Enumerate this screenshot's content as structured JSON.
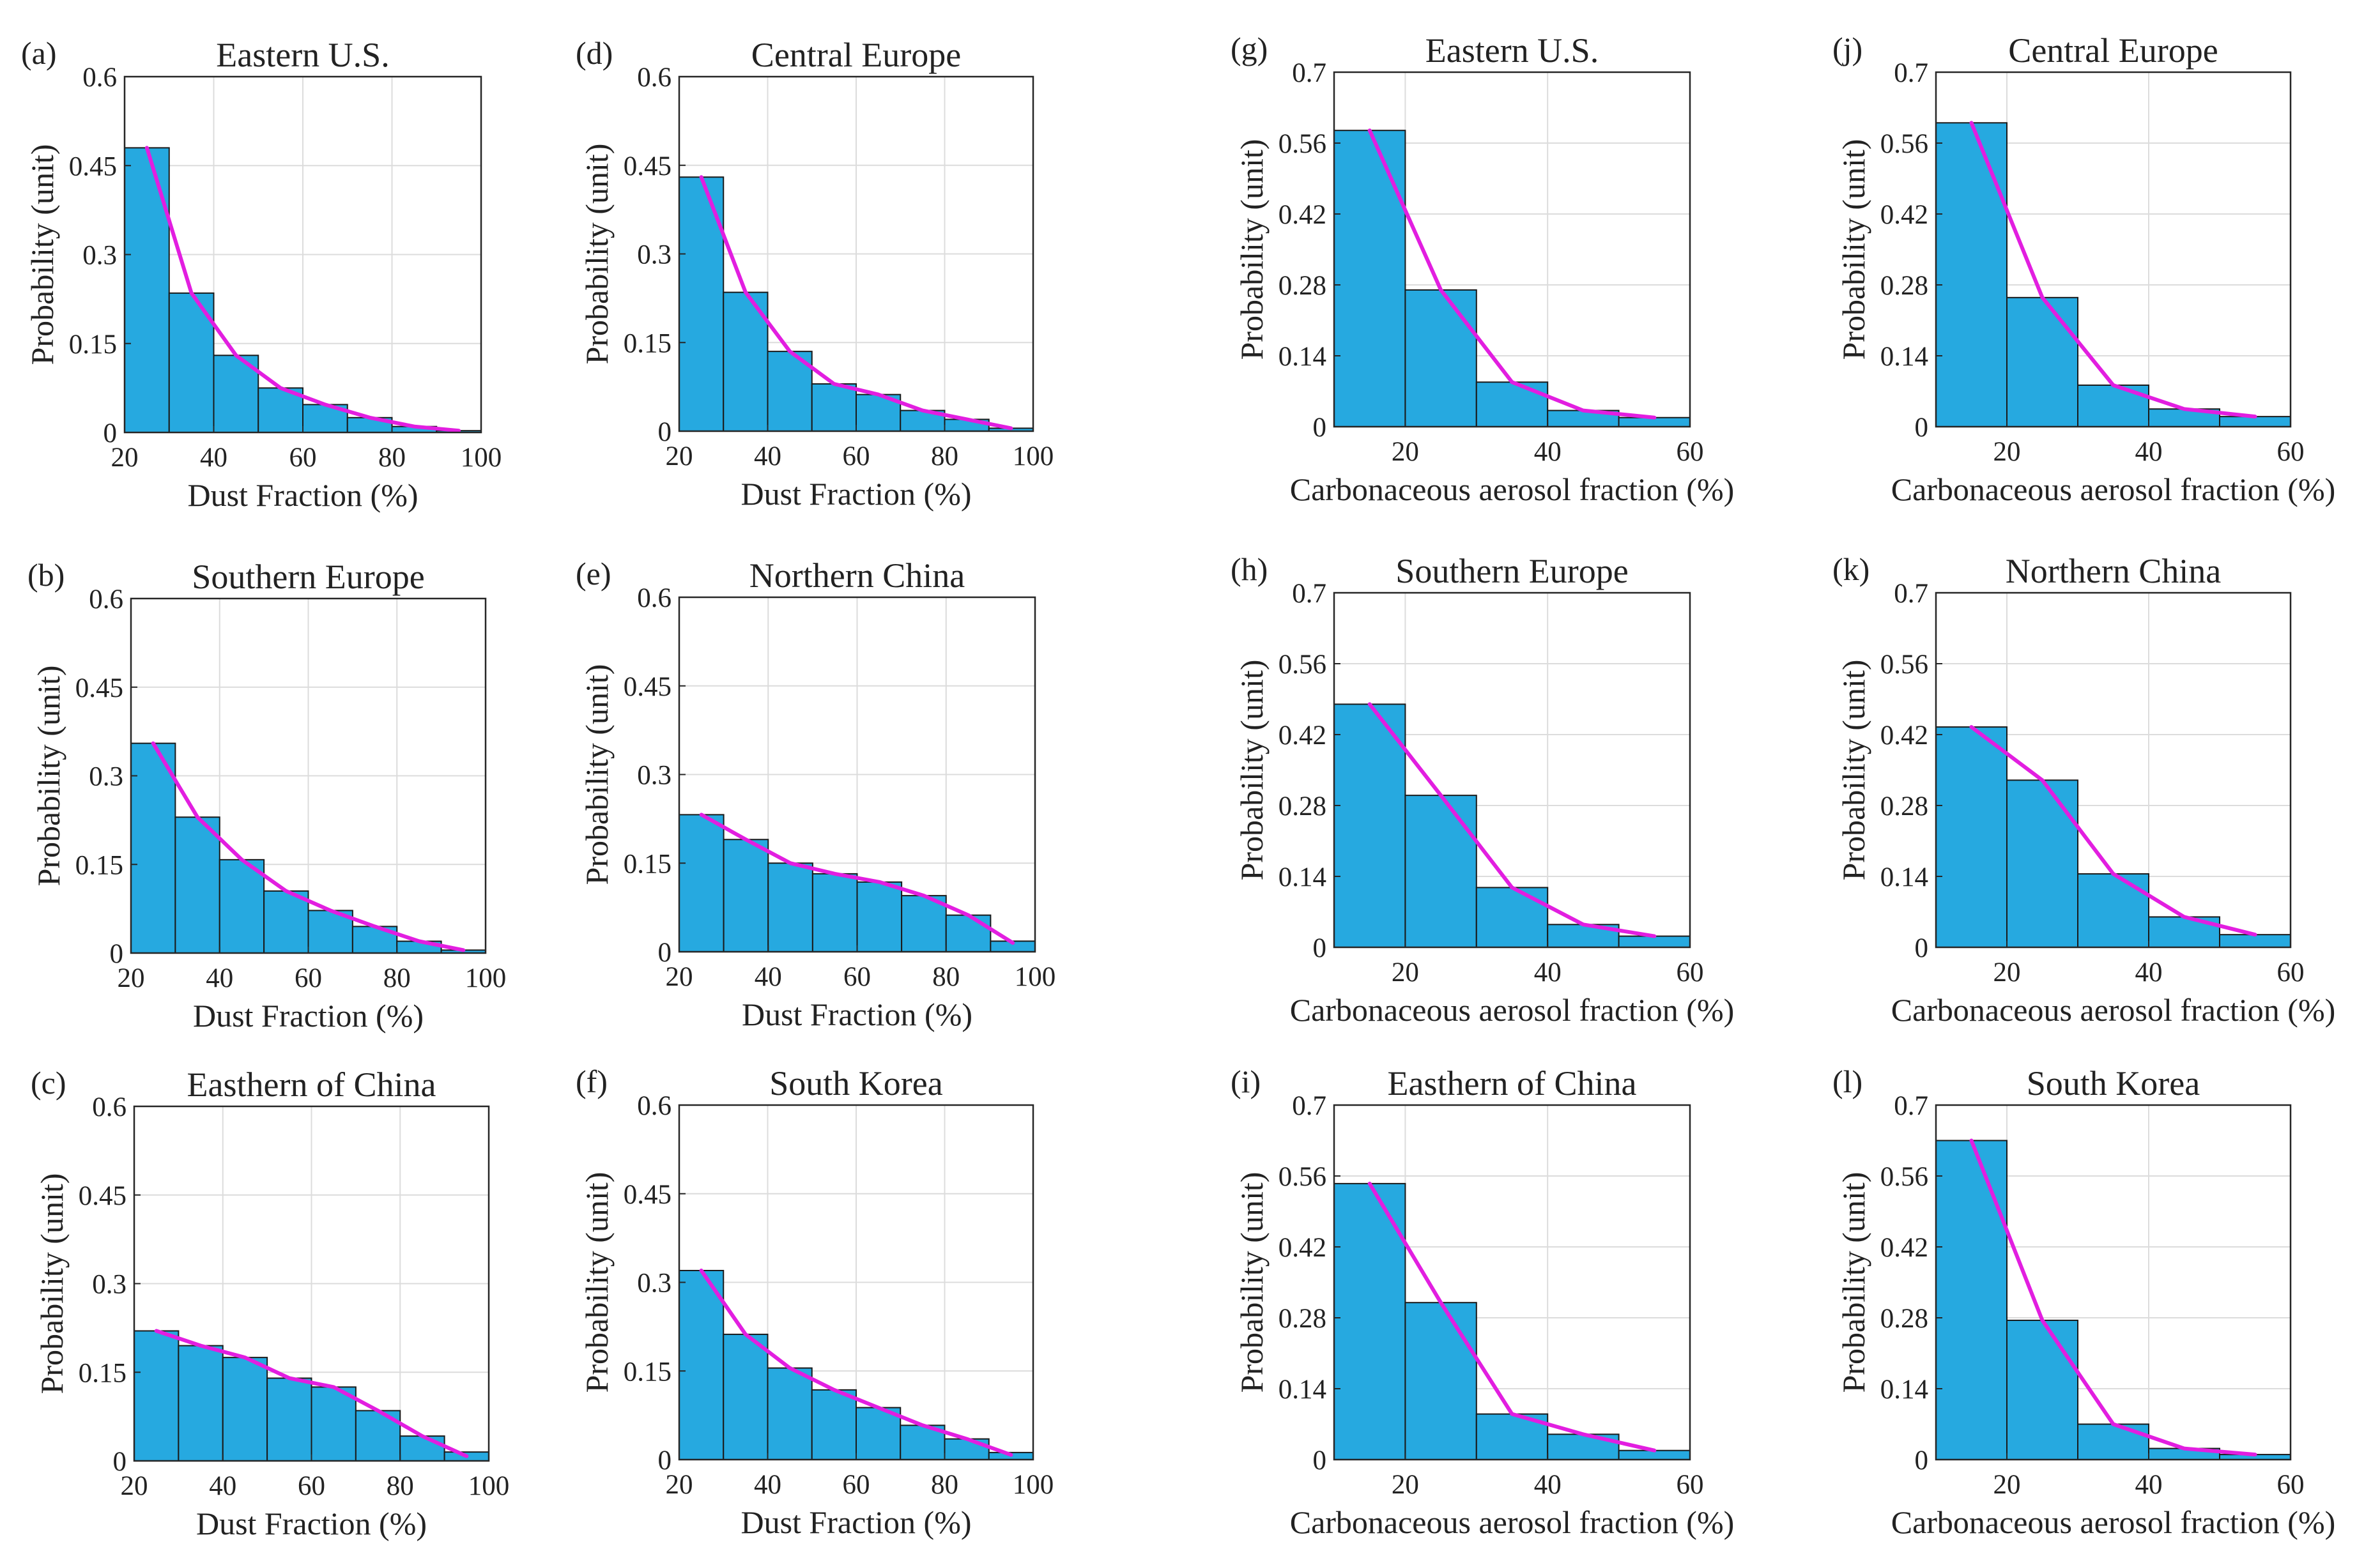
{
  "colors": {
    "bar": "#26a9e0",
    "bar_edge": "#1a1a1a",
    "curve": "#e21ee0",
    "grid": "#dcdcdc",
    "axis": "#262626"
  },
  "chart_data": [
    {
      "panel": "(a)",
      "type": "bar",
      "title": "Eastern U.S.",
      "xlabel": "Dust Fraction (%)",
      "ylabel": "Probability (unit)",
      "xlim": [
        20,
        100
      ],
      "ylim": [
        0,
        0.6
      ],
      "xticks": [
        "20",
        "40",
        "60",
        "80",
        "100"
      ],
      "yticks": [
        "0",
        "0.15",
        "0.3",
        "0.45",
        "0.6"
      ],
      "bins": [
        [
          20,
          30
        ],
        [
          30,
          40
        ],
        [
          40,
          50
        ],
        [
          50,
          60
        ],
        [
          60,
          70
        ],
        [
          70,
          80
        ],
        [
          80,
          90
        ],
        [
          90,
          100
        ]
      ],
      "values": [
        0.48,
        0.235,
        0.13,
        0.075,
        0.047,
        0.025,
        0.01,
        0.003
      ],
      "curve": {
        "x": [
          25,
          35,
          45,
          55,
          65,
          75,
          85,
          95
        ],
        "y": [
          0.48,
          0.235,
          0.13,
          0.075,
          0.047,
          0.025,
          0.01,
          0.003
        ]
      }
    },
    {
      "panel": "(b)",
      "type": "bar",
      "title": "Southern Europe",
      "xlabel": "Dust Fraction (%)",
      "ylabel": "Probability (unit)",
      "xlim": [
        20,
        100
      ],
      "ylim": [
        0,
        0.6
      ],
      "xticks": [
        "20",
        "40",
        "60",
        "80",
        "100"
      ],
      "yticks": [
        "0",
        "0.15",
        "0.3",
        "0.45",
        "0.6"
      ],
      "bins": [
        [
          20,
          30
        ],
        [
          30,
          40
        ],
        [
          40,
          50
        ],
        [
          50,
          60
        ],
        [
          60,
          70
        ],
        [
          70,
          80
        ],
        [
          80,
          90
        ],
        [
          90,
          100
        ]
      ],
      "values": [
        0.355,
        0.23,
        0.158,
        0.105,
        0.072,
        0.045,
        0.02,
        0.005
      ],
      "curve": {
        "x": [
          25,
          35,
          45,
          55,
          65,
          75,
          85,
          95
        ],
        "y": [
          0.355,
          0.23,
          0.158,
          0.105,
          0.072,
          0.045,
          0.02,
          0.005
        ]
      }
    },
    {
      "panel": "(c)",
      "type": "bar",
      "title": "Easthern of China",
      "xlabel": "Dust Fraction (%)",
      "ylabel": "Probability (unit)",
      "xlim": [
        20,
        100
      ],
      "ylim": [
        0,
        0.6
      ],
      "xticks": [
        "20",
        "40",
        "60",
        "80",
        "100"
      ],
      "yticks": [
        "0",
        "0.15",
        "0.3",
        "0.45",
        "0.6"
      ],
      "bins": [
        [
          20,
          30
        ],
        [
          30,
          40
        ],
        [
          40,
          50
        ],
        [
          50,
          60
        ],
        [
          60,
          70
        ],
        [
          70,
          80
        ],
        [
          80,
          90
        ],
        [
          90,
          100
        ]
      ],
      "values": [
        0.22,
        0.195,
        0.175,
        0.14,
        0.125,
        0.085,
        0.042,
        0.015
      ],
      "curve": {
        "x": [
          25,
          35,
          45,
          55,
          65,
          75,
          85,
          95
        ],
        "y": [
          0.22,
          0.195,
          0.175,
          0.14,
          0.125,
          0.085,
          0.042,
          0.008
        ]
      }
    },
    {
      "panel": "(d)",
      "type": "bar",
      "title": "Central Europe",
      "xlabel": "Dust Fraction (%)",
      "ylabel": "Probability (unit)",
      "xlim": [
        20,
        100
      ],
      "ylim": [
        0,
        0.6
      ],
      "xticks": [
        "20",
        "40",
        "60",
        "80",
        "100"
      ],
      "yticks": [
        "0",
        "0.15",
        "0.3",
        "0.45",
        "0.6"
      ],
      "bins": [
        [
          20,
          30
        ],
        [
          30,
          40
        ],
        [
          40,
          50
        ],
        [
          50,
          60
        ],
        [
          60,
          70
        ],
        [
          70,
          80
        ],
        [
          80,
          90
        ],
        [
          90,
          100
        ]
      ],
      "values": [
        0.43,
        0.235,
        0.135,
        0.08,
        0.062,
        0.035,
        0.02,
        0.005
      ],
      "curve": {
        "x": [
          25,
          35,
          45,
          55,
          65,
          75,
          85,
          95
        ],
        "y": [
          0.43,
          0.235,
          0.135,
          0.08,
          0.062,
          0.035,
          0.02,
          0.005
        ]
      }
    },
    {
      "panel": "(e)",
      "type": "bar",
      "title": "Northern China",
      "xlabel": "Dust Fraction (%)",
      "ylabel": "Probability (unit)",
      "xlim": [
        20,
        100
      ],
      "ylim": [
        0,
        0.6
      ],
      "xticks": [
        "20",
        "40",
        "60",
        "80",
        "100"
      ],
      "yticks": [
        "0",
        "0.15",
        "0.3",
        "0.45",
        "0.6"
      ],
      "bins": [
        [
          20,
          30
        ],
        [
          30,
          40
        ],
        [
          40,
          50
        ],
        [
          50,
          60
        ],
        [
          60,
          70
        ],
        [
          70,
          80
        ],
        [
          80,
          90
        ],
        [
          90,
          100
        ]
      ],
      "values": [
        0.232,
        0.19,
        0.15,
        0.132,
        0.118,
        0.095,
        0.062,
        0.018
      ],
      "curve": {
        "x": [
          25,
          35,
          45,
          55,
          65,
          75,
          85,
          95
        ],
        "y": [
          0.232,
          0.19,
          0.15,
          0.132,
          0.118,
          0.095,
          0.062,
          0.015
        ]
      }
    },
    {
      "panel": "(f)",
      "type": "bar",
      "title": "South Korea",
      "xlabel": "Dust Fraction (%)",
      "ylabel": "Probability (unit)",
      "xlim": [
        20,
        100
      ],
      "ylim": [
        0,
        0.6
      ],
      "xticks": [
        "20",
        "40",
        "60",
        "80",
        "100"
      ],
      "yticks": [
        "0",
        "0.15",
        "0.3",
        "0.45",
        "0.6"
      ],
      "bins": [
        [
          20,
          30
        ],
        [
          30,
          40
        ],
        [
          40,
          50
        ],
        [
          50,
          60
        ],
        [
          60,
          70
        ],
        [
          70,
          80
        ],
        [
          80,
          90
        ],
        [
          90,
          100
        ]
      ],
      "values": [
        0.32,
        0.212,
        0.155,
        0.118,
        0.088,
        0.058,
        0.035,
        0.012
      ],
      "curve": {
        "x": [
          25,
          35,
          45,
          55,
          65,
          75,
          85,
          95
        ],
        "y": [
          0.32,
          0.212,
          0.155,
          0.118,
          0.088,
          0.058,
          0.035,
          0.008
        ]
      }
    },
    {
      "panel": "(g)",
      "type": "bar",
      "title": "Eastern U.S.",
      "xlabel": "Carbonaceous aerosol fraction (%)",
      "ylabel": "Probability (unit)",
      "xlim": [
        10,
        60
      ],
      "ylim": [
        0,
        0.7
      ],
      "xticks": [
        "20",
        "40",
        "60"
      ],
      "yticks": [
        "0",
        "0.14",
        "0.28",
        "0.42",
        "0.56",
        "0.7"
      ],
      "bins": [
        [
          10,
          20
        ],
        [
          20,
          30
        ],
        [
          30,
          40
        ],
        [
          40,
          50
        ],
        [
          50,
          60
        ]
      ],
      "values": [
        0.585,
        0.27,
        0.088,
        0.032,
        0.018
      ],
      "curve": {
        "x": [
          15,
          25,
          35,
          45,
          55
        ],
        "y": [
          0.585,
          0.27,
          0.088,
          0.032,
          0.018
        ]
      }
    },
    {
      "panel": "(h)",
      "type": "bar",
      "title": "Southern Europe",
      "xlabel": "Carbonaceous aerosol fraction (%)",
      "ylabel": "Probability (unit)",
      "xlim": [
        10,
        60
      ],
      "ylim": [
        0,
        0.7
      ],
      "xticks": [
        "20",
        "40",
        "60"
      ],
      "yticks": [
        "0",
        "0.14",
        "0.28",
        "0.42",
        "0.56",
        "0.7"
      ],
      "bins": [
        [
          10,
          20
        ],
        [
          20,
          30
        ],
        [
          30,
          40
        ],
        [
          40,
          50
        ],
        [
          50,
          60
        ]
      ],
      "values": [
        0.48,
        0.3,
        0.118,
        0.045,
        0.022
      ],
      "curve": {
        "x": [
          15,
          25,
          35,
          45,
          55
        ],
        "y": [
          0.48,
          0.3,
          0.118,
          0.045,
          0.022
        ]
      }
    },
    {
      "panel": "(i)",
      "type": "bar",
      "title": "Easthern of China",
      "xlabel": "Carbonaceous aerosol fraction (%)",
      "ylabel": "Probability (unit)",
      "xlim": [
        10,
        60
      ],
      "ylim": [
        0,
        0.7
      ],
      "xticks": [
        "20",
        "40",
        "60"
      ],
      "yticks": [
        "0",
        "0.14",
        "0.28",
        "0.42",
        "0.56",
        "0.7"
      ],
      "bins": [
        [
          10,
          20
        ],
        [
          20,
          30
        ],
        [
          30,
          40
        ],
        [
          40,
          50
        ],
        [
          50,
          60
        ]
      ],
      "values": [
        0.545,
        0.31,
        0.09,
        0.05,
        0.018
      ],
      "curve": {
        "x": [
          15,
          25,
          35,
          45,
          55
        ],
        "y": [
          0.545,
          0.31,
          0.09,
          0.05,
          0.018
        ]
      }
    },
    {
      "panel": "(j)",
      "type": "bar",
      "title": "Central Europe",
      "xlabel": "Carbonaceous aerosol fraction (%)",
      "ylabel": "Probability (unit)",
      "xlim": [
        10,
        60
      ],
      "ylim": [
        0,
        0.7
      ],
      "xticks": [
        "20",
        "40",
        "60"
      ],
      "yticks": [
        "0",
        "0.14",
        "0.28",
        "0.42",
        "0.56",
        "0.7"
      ],
      "bins": [
        [
          10,
          20
        ],
        [
          20,
          30
        ],
        [
          30,
          40
        ],
        [
          40,
          50
        ],
        [
          50,
          60
        ]
      ],
      "values": [
        0.6,
        0.255,
        0.082,
        0.035,
        0.02
      ],
      "curve": {
        "x": [
          15,
          25,
          35,
          45,
          55
        ],
        "y": [
          0.6,
          0.255,
          0.082,
          0.035,
          0.02
        ]
      }
    },
    {
      "panel": "(k)",
      "type": "bar",
      "title": "Northern China",
      "xlabel": "Carbonaceous aerosol fraction (%)",
      "ylabel": "Probability (unit)",
      "xlim": [
        10,
        60
      ],
      "ylim": [
        0,
        0.7
      ],
      "xticks": [
        "20",
        "40",
        "60"
      ],
      "yticks": [
        "0",
        "0.14",
        "0.28",
        "0.42",
        "0.56",
        "0.7"
      ],
      "bins": [
        [
          10,
          20
        ],
        [
          20,
          30
        ],
        [
          30,
          40
        ],
        [
          40,
          50
        ],
        [
          50,
          60
        ]
      ],
      "values": [
        0.435,
        0.33,
        0.145,
        0.06,
        0.025
      ],
      "curve": {
        "x": [
          15,
          25,
          35,
          45,
          55
        ],
        "y": [
          0.435,
          0.33,
          0.145,
          0.06,
          0.025
        ]
      }
    },
    {
      "panel": "(l)",
      "type": "bar",
      "title": "South Korea",
      "xlabel": "Carbonaceous aerosol fraction (%)",
      "ylabel": "Probability (unit)",
      "xlim": [
        10,
        60
      ],
      "ylim": [
        0,
        0.7
      ],
      "xticks": [
        "20",
        "40",
        "60"
      ],
      "yticks": [
        "0",
        "0.14",
        "0.28",
        "0.42",
        "0.56",
        "0.7"
      ],
      "bins": [
        [
          10,
          20
        ],
        [
          20,
          30
        ],
        [
          30,
          40
        ],
        [
          40,
          50
        ],
        [
          50,
          60
        ]
      ],
      "values": [
        0.63,
        0.275,
        0.07,
        0.022,
        0.01
      ],
      "curve": {
        "x": [
          15,
          25,
          35,
          45,
          55
        ],
        "y": [
          0.63,
          0.275,
          0.07,
          0.022,
          0.01
        ]
      }
    }
  ]
}
